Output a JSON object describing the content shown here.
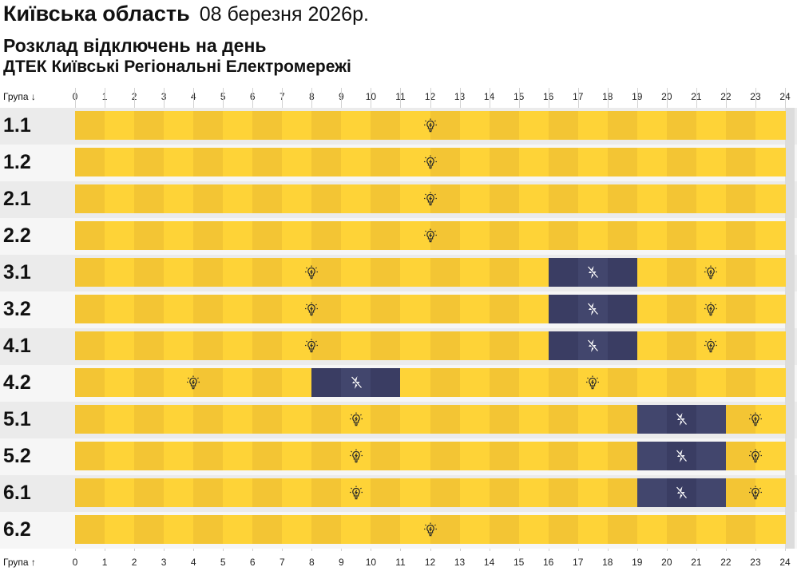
{
  "header": {
    "region": "Київська область",
    "date": "08 березня 2026р.",
    "subtitle": "Розклад відключень на день",
    "company": "ДТЕК Київські Регіональні Електромережі"
  },
  "table": {
    "top_group_label": "Група ↓",
    "bottom_group_label": "Група ↑",
    "hours": [
      "0",
      "1",
      "2",
      "3",
      "4",
      "5",
      "6",
      "7",
      "8",
      "9",
      "10",
      "11",
      "12",
      "13",
      "14",
      "15",
      "16",
      "17",
      "18",
      "19",
      "20",
      "21",
      "22",
      "23",
      "24"
    ],
    "groups": [
      {
        "name": "1.1",
        "outages": []
      },
      {
        "name": "1.2",
        "outages": []
      },
      {
        "name": "2.1",
        "outages": []
      },
      {
        "name": "2.2",
        "outages": []
      },
      {
        "name": "3.1",
        "outages": [
          [
            16,
            19
          ]
        ]
      },
      {
        "name": "3.2",
        "outages": [
          [
            16,
            19
          ]
        ]
      },
      {
        "name": "4.1",
        "outages": [
          [
            16,
            19
          ]
        ]
      },
      {
        "name": "4.2",
        "outages": [
          [
            8,
            11
          ]
        ]
      },
      {
        "name": "5.1",
        "outages": [
          [
            19,
            22
          ]
        ]
      },
      {
        "name": "5.2",
        "outages": [
          [
            19,
            22
          ]
        ]
      },
      {
        "name": "6.1",
        "outages": [
          [
            19,
            22
          ]
        ]
      },
      {
        "name": "6.2",
        "outages": []
      }
    ]
  },
  "icons": {
    "power_on": "lightbulb-icon",
    "power_off": "lightning-off-icon"
  },
  "colors": {
    "power_on_dark": "#f3c534",
    "power_on_light": "#fed337",
    "power_off_dark": "#3a3d63",
    "power_off_light": "#42466d",
    "row_bg_a": "#ebebeb",
    "row_bg_b": "#f6f6f6"
  }
}
